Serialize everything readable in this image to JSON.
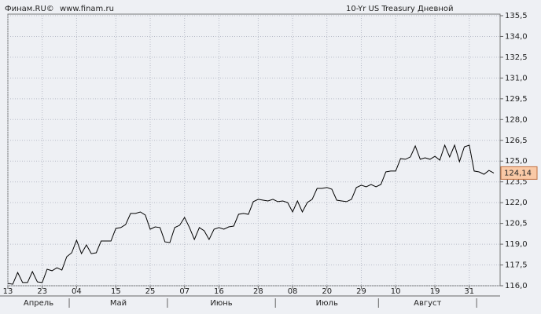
{
  "chart_data": {
    "type": "line",
    "source": "Финам.RU©",
    "url": "www.finam.ru",
    "title": "10-Yr US Treasury Дневной",
    "categories": [
      "13",
      null,
      null,
      null,
      null,
      null,
      null,
      "23",
      null,
      null,
      null,
      null,
      null,
      null,
      "04",
      null,
      null,
      null,
      null,
      null,
      null,
      null,
      "15",
      null,
      null,
      null,
      null,
      null,
      null,
      "25",
      null,
      null,
      null,
      null,
      null,
      null,
      "07",
      null,
      null,
      null,
      null,
      null,
      null,
      "16",
      null,
      null,
      null,
      null,
      null,
      null,
      null,
      "28",
      null,
      null,
      null,
      null,
      null,
      null,
      "08",
      null,
      null,
      null,
      null,
      null,
      null,
      "20",
      null,
      null,
      null,
      null,
      null,
      null,
      "29",
      null,
      null,
      null,
      null,
      null,
      null,
      "10",
      null,
      null,
      null,
      null,
      null,
      null,
      null,
      "19",
      null,
      null,
      null,
      null,
      null,
      null,
      "31",
      null,
      null,
      null,
      null,
      null
    ],
    "months": [
      {
        "label": "Апрель",
        "start": 0,
        "end": 12
      },
      {
        "label": "Май",
        "start": 13,
        "end": 32
      },
      {
        "label": "Июнь",
        "start": 33,
        "end": 54
      },
      {
        "label": "Июль",
        "start": 55,
        "end": 75
      },
      {
        "label": "Август",
        "start": 76,
        "end": 95
      }
    ],
    "series": [
      {
        "name": "10-Yr US Treasury",
        "color": "#000000",
        "values": [
          116.17,
          116.11,
          116.96,
          116.23,
          116.23,
          117.02,
          116.28,
          116.23,
          117.19,
          117.08,
          117.3,
          117.13,
          118.1,
          118.38,
          119.29,
          118.32,
          118.95,
          118.32,
          118.38,
          119.23,
          119.23,
          119.23,
          120.14,
          120.2,
          120.42,
          121.22,
          121.22,
          121.33,
          121.1,
          120.08,
          120.25,
          120.2,
          119.17,
          119.12,
          120.2,
          120.37,
          120.93,
          120.2,
          119.34,
          120.2,
          119.97,
          119.34,
          120.08,
          120.2,
          120.08,
          120.25,
          120.31,
          121.16,
          121.22,
          121.16,
          122.07,
          122.24,
          122.18,
          122.12,
          122.24,
          122.07,
          122.12,
          122.01,
          121.33,
          122.12,
          121.33,
          122.01,
          122.24,
          123.03,
          123.03,
          123.09,
          122.97,
          122.18,
          122.12,
          122.07,
          122.24,
          123.09,
          123.26,
          123.14,
          123.31,
          123.14,
          123.31,
          124.22,
          124.28,
          124.28,
          125.18,
          125.13,
          125.3,
          126.09,
          125.13,
          125.24,
          125.13,
          125.35,
          125.07,
          126.15,
          125.3,
          126.15,
          124.96,
          126.03,
          126.15,
          124.28,
          124.22,
          124.05,
          124.33,
          124.14
        ],
        "last_label": "124,14"
      }
    ],
    "ylim": [
      116,
      135.5
    ],
    "yticks": [
      {
        "value": 116,
        "label": "116,0"
      },
      {
        "value": 117.5,
        "label": "117,5"
      },
      {
        "value": 119,
        "label": "119,0"
      },
      {
        "value": 120.5,
        "label": "120,5"
      },
      {
        "value": 122,
        "label": "122,0"
      },
      {
        "value": 123.5,
        "label": "123,5"
      },
      {
        "value": 125,
        "label": "125,0"
      },
      {
        "value": 126.5,
        "label": "126,5"
      },
      {
        "value": 128,
        "label": "128,0"
      },
      {
        "value": 129.5,
        "label": "129,5"
      },
      {
        "value": 131,
        "label": "131,0"
      },
      {
        "value": 132.5,
        "label": "132,5"
      },
      {
        "value": 134,
        "label": "134,0"
      },
      {
        "value": 135.5,
        "label": "135,5"
      }
    ],
    "grid": true
  }
}
